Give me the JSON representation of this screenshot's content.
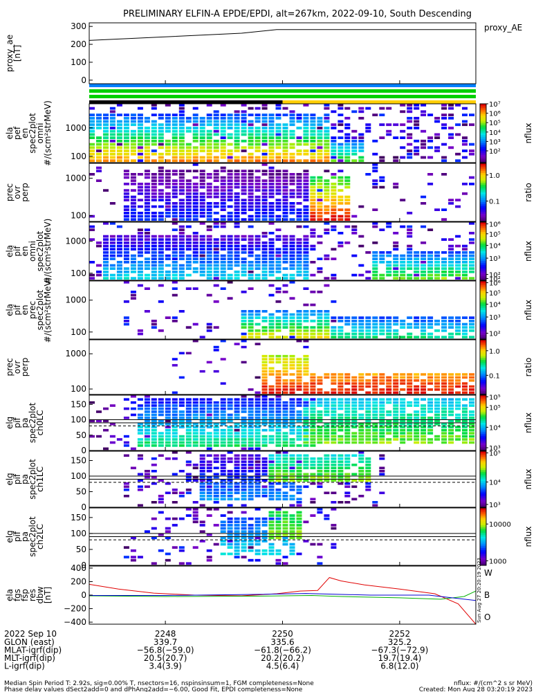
{
  "title": "PRELIMINARY ELFIN-A EPDE/EPDI, alt=267km, 2022-09-10, South Descending",
  "colors": {
    "red": "#e00000",
    "green": "#00b000",
    "blue": "#0000d0",
    "bar_blue": "#0080ff",
    "bar_green": "#00d000",
    "bar_yellow": "#ffd000"
  },
  "chart_data": [
    {
      "type": "line",
      "id": "proxy_ae",
      "legend": "proxy_AE",
      "ylabel": [
        "proxy_ae",
        "[nT]"
      ],
      "ylim": [
        -20,
        320
      ],
      "yticks": [
        {
          "v": 0,
          "label": "0"
        },
        {
          "v": 100,
          "label": "100"
        },
        {
          "v": 200,
          "label": "200"
        },
        {
          "v": 300,
          "label": "300"
        }
      ],
      "x": [
        2246.7,
        2249.3,
        2249.9,
        2253.3
      ],
      "values": [
        222,
        262,
        282,
        282
      ]
    },
    {
      "type": "heatmap",
      "id": "elafen",
      "ylabel": [
        "ela",
        "pef",
        "en",
        "spec2plot",
        "omni",
        "#/(scm²strMeV)"
      ],
      "yscale": "log",
      "ylim": [
        60,
        7000
      ],
      "yticks": [
        {
          "v": 100,
          "label": "100"
        },
        {
          "v": 1000,
          "label": "1000"
        }
      ],
      "colorbar": {
        "label": "nflux",
        "log": true,
        "ticks": [
          {
            "label": "10⁷",
            "f": 1.0
          },
          {
            "label": "10⁶",
            "f": 0.84
          },
          {
            "label": "10⁵",
            "f": 0.68
          },
          {
            "label": "10⁴",
            "f": 0.52
          },
          {
            "label": "10³",
            "f": 0.36
          },
          {
            "label": "10²",
            "f": 0.2
          }
        ]
      },
      "blobs": [
        {
          "x0": 2246.7,
          "x1": 2250.8,
          "lo": 60,
          "hi": 3000,
          "cmin": 0.3,
          "cmax": 0.9
        },
        {
          "x0": 2250.8,
          "x1": 2251.4,
          "lo": 60,
          "hi": 400,
          "cmin": 0.3,
          "cmax": 0.7
        }
      ],
      "noise": {
        "x0": 2246.7,
        "x1": 2253.3,
        "density": 0.35
      }
    },
    {
      "type": "heatmap",
      "id": "prec_ovr_perp_e",
      "ylabel": [
        "prec",
        "ovr",
        "perp"
      ],
      "yscale": "log",
      "ylim": [
        70,
        2500
      ],
      "yticks": [
        {
          "v": 100,
          "label": "100"
        },
        {
          "v": 1000,
          "label": "1000"
        }
      ],
      "colorbar": {
        "label": "ratio",
        "log": true,
        "ticks": [
          {
            "label": "1.0",
            "f": 0.8
          },
          {
            "label": "0.1",
            "f": 0.35
          }
        ]
      },
      "blobs": [
        {
          "x0": 2247.3,
          "x1": 2250.5,
          "lo": 70,
          "hi": 1700,
          "cmin": 0.05,
          "cmax": 0.3
        },
        {
          "x0": 2250.5,
          "x1": 2251.2,
          "lo": 70,
          "hi": 1200,
          "cmin": 0.6,
          "cmax": 1.0
        }
      ],
      "noise": {
        "x0": 2246.7,
        "x1": 2253.3,
        "density": 0.1
      }
    },
    {
      "type": "heatmap",
      "id": "elapifen",
      "ylabel": [
        "ela",
        "pif",
        "en",
        "omni",
        "spec2plot",
        "#/(scm²strMeV)"
      ],
      "yscale": "log",
      "ylim": [
        60,
        4000
      ],
      "yticks": [
        {
          "v": 100,
          "label": "100"
        },
        {
          "v": 1000,
          "label": "1000"
        }
      ],
      "colorbar": {
        "label": "nflux",
        "log": true,
        "ticks": [
          {
            "label": "10⁶",
            "f": 0.97
          },
          {
            "label": "10⁵",
            "f": 0.8
          },
          {
            "label": "10⁴",
            "f": 0.6
          },
          {
            "label": "10³",
            "f": 0.38
          },
          {
            "label": "10²",
            "f": 0.1
          },
          {
            "label": "10²",
            "f": 0.03
          }
        ]
      },
      "blobs": [
        {
          "x0": 2246.9,
          "x1": 2250.5,
          "lo": 60,
          "hi": 1500,
          "cmin": 0.15,
          "cmax": 0.5
        },
        {
          "x0": 2251.5,
          "x1": 2253.3,
          "lo": 60,
          "hi": 500,
          "cmin": 0.3,
          "cmax": 0.7
        }
      ],
      "noise": {
        "x0": 2246.7,
        "x1": 2253.3,
        "density": 0.25
      }
    },
    {
      "type": "heatmap",
      "id": "elapifen_prec",
      "ylabel": [
        "ela",
        "pif",
        "en",
        "prec",
        "spec2plot",
        "#/(scm²strMeV)"
      ],
      "yscale": "log",
      "ylim": [
        60,
        4000
      ],
      "yticks": [
        {
          "v": 100,
          "label": "100"
        },
        {
          "v": 1000,
          "label": "1000"
        }
      ],
      "colorbar": {
        "label": "nflux",
        "log": true,
        "ticks": [
          {
            "label": "10⁶",
            "f": 0.97
          },
          {
            "label": "10⁵",
            "f": 0.8
          },
          {
            "label": "10⁴",
            "f": 0.6
          },
          {
            "label": "10³",
            "f": 0.38
          },
          {
            "label": "10²",
            "f": 0.1
          }
        ]
      },
      "blobs": [
        {
          "x0": 2249.3,
          "x1": 2250.8,
          "lo": 60,
          "hi": 500,
          "cmin": 0.35,
          "cmax": 0.8
        },
        {
          "x0": 2250.8,
          "x1": 2253.3,
          "lo": 60,
          "hi": 300,
          "cmin": 0.3,
          "cmax": 0.6
        }
      ],
      "noise": {
        "x0": 2247.3,
        "x1": 2251.0,
        "density": 0.12
      }
    },
    {
      "type": "heatmap",
      "id": "prec_ovr_perp_i",
      "ylabel": [
        "prec",
        "ovr",
        "perp"
      ],
      "yscale": "log",
      "ylim": [
        70,
        2500
      ],
      "yticks": [
        {
          "v": 100,
          "label": "100"
        },
        {
          "v": 1000,
          "label": "1000"
        }
      ],
      "colorbar": {
        "label": "ratio",
        "log": true,
        "ticks": [
          {
            "label": "1.0",
            "f": 0.8
          },
          {
            "label": "0.1",
            "f": 0.35
          }
        ]
      },
      "blobs": [
        {
          "x0": 2249.7,
          "x1": 2250.5,
          "lo": 70,
          "hi": 900,
          "cmin": 0.7,
          "cmax": 1.0
        },
        {
          "x0": 2250.5,
          "x1": 2253.3,
          "lo": 70,
          "hi": 300,
          "cmin": 0.85,
          "cmax": 1.0
        }
      ],
      "noise": {
        "x0": 2248.0,
        "x1": 2250.5,
        "density": 0.1
      }
    },
    {
      "type": "heatmap",
      "id": "elgpifpa_ch0",
      "ylabel": [
        "elg",
        "pif",
        "pa",
        "spec2plot",
        "ch0LC"
      ],
      "yscale": "linear",
      "ylim": [
        0,
        180
      ],
      "yticks": [
        {
          "v": 0,
          "label": "0"
        },
        {
          "v": 50,
          "label": "50"
        },
        {
          "v": 100,
          "label": "100"
        },
        {
          "v": 150,
          "label": "150"
        }
      ],
      "hlines": [
        {
          "v": 100,
          "dash": false
        },
        {
          "v": 90,
          "dash": false
        },
        {
          "v": 80,
          "dash": true
        }
      ],
      "colorbar": {
        "label": "nflux",
        "log": true,
        "ticks": [
          {
            "label": "10⁵",
            "f": 0.97
          },
          {
            "label": "10⁵",
            "f": 0.78
          },
          {
            "label": "10⁴",
            "f": 0.42
          },
          {
            "label": "10³",
            "f": 0.05
          }
        ]
      },
      "blobs": [
        {
          "x0": 2247.5,
          "x1": 2250.6,
          "lo": 10,
          "hi": 170,
          "cmin": 0.25,
          "cmax": 0.6
        },
        {
          "x0": 2250.3,
          "x1": 2253.3,
          "lo": 20,
          "hi": 170,
          "cmin": 0.45,
          "cmax": 0.7
        }
      ],
      "noise": {
        "x0": 2246.7,
        "x1": 2250.0,
        "density": 0.25
      }
    },
    {
      "type": "heatmap",
      "id": "elgpifpa_ch1",
      "ylabel": [
        "elg",
        "pif",
        "pa",
        "spec2plot",
        "ch1LC"
      ],
      "yscale": "linear",
      "ylim": [
        0,
        180
      ],
      "yticks": [
        {
          "v": 0,
          "label": "0"
        },
        {
          "v": 50,
          "label": "50"
        },
        {
          "v": 100,
          "label": "100"
        },
        {
          "v": 150,
          "label": "150"
        }
      ],
      "hlines": [
        {
          "v": 100,
          "dash": false
        },
        {
          "v": 90,
          "dash": false
        },
        {
          "v": 80,
          "dash": true
        }
      ],
      "colorbar": {
        "label": "nflux",
        "log": true,
        "ticks": [
          {
            "label": "10⁵",
            "f": 0.97
          },
          {
            "label": "10⁴",
            "f": 0.45
          },
          {
            "label": "10³",
            "f": 0.05
          }
        ]
      },
      "blobs": [
        {
          "x0": 2248.6,
          "x1": 2250.4,
          "lo": 20,
          "hi": 170,
          "cmin": 0.15,
          "cmax": 0.4
        },
        {
          "x0": 2249.8,
          "x1": 2251.5,
          "lo": 80,
          "hi": 170,
          "cmin": 0.5,
          "cmax": 0.7
        }
      ],
      "noise": {
        "x0": 2247.3,
        "x1": 2251.8,
        "density": 0.25
      }
    },
    {
      "type": "heatmap",
      "id": "elgpifpa_ch2",
      "ylabel": [
        "elg",
        "pif",
        "pa",
        "spec2plot",
        "ch2LC"
      ],
      "yscale": "linear",
      "ylim": [
        0,
        180
      ],
      "yticks": [
        {
          "v": 0,
          "label": "0"
        },
        {
          "v": 50,
          "label": "50"
        },
        {
          "v": 100,
          "label": "100"
        },
        {
          "v": 150,
          "label": "150"
        }
      ],
      "hlines": [
        {
          "v": 100,
          "dash": false
        },
        {
          "v": 90,
          "dash": false
        },
        {
          "v": 80,
          "dash": true
        }
      ],
      "colorbar": {
        "label": "nflux",
        "log": true,
        "ticks": [
          {
            "label": "10000",
            "f": 0.72
          },
          {
            "label": "1000",
            "f": 0.08
          }
        ]
      },
      "blobs": [
        {
          "x0": 2248.9,
          "x1": 2250.2,
          "lo": 30,
          "hi": 150,
          "cmin": 0.3,
          "cmax": 0.5
        },
        {
          "x0": 2249.8,
          "x1": 2250.3,
          "lo": 80,
          "hi": 170,
          "cmin": 0.6,
          "cmax": 0.7
        }
      ],
      "noise": {
        "x0": 2247.3,
        "x1": 2251.0,
        "density": 0.2
      }
    },
    {
      "type": "line",
      "id": "bbw",
      "ylabel": [
        "ela",
        "fgs",
        "fsp",
        "res",
        "dbw",
        "[nT]"
      ],
      "ylim": [
        -430,
        430
      ],
      "yticks": [
        {
          "v": -400,
          "label": "−400"
        },
        {
          "v": -200,
          "label": "−200"
        },
        {
          "v": 0,
          "label": "0"
        },
        {
          "v": 200,
          "label": "200"
        },
        {
          "v": 400,
          "label": "400"
        }
      ],
      "series": [
        {
          "name": "W",
          "color": "#e00000",
          "x": [
            2246.7,
            2247.2,
            2247.8,
            2248.5,
            2249.3,
            2249.9,
            2250.3,
            2250.6,
            2250.8,
            2251.0,
            2251.4,
            2252.0,
            2252.6,
            2253.0,
            2253.3
          ],
          "values": [
            160,
            90,
            30,
            0,
            -10,
            20,
            60,
            70,
            260,
            210,
            150,
            90,
            20,
            -130,
            -440
          ]
        },
        {
          "name": "B",
          "color": "#00b000",
          "x": [
            2246.7,
            2248.0,
            2249.5,
            2250.5,
            2251.0,
            2252.0,
            2252.7,
            2253.1,
            2253.3
          ],
          "values": [
            -10,
            -20,
            -15,
            -5,
            -20,
            -40,
            -60,
            -20,
            60
          ]
        },
        {
          "name": "O",
          "color": "#0000d0",
          "x": [
            2246.7,
            2248.0,
            2249.5,
            2250.4,
            2251.5,
            2252.5,
            2253.3
          ],
          "values": [
            -5,
            -5,
            10,
            25,
            0,
            0,
            -80
          ]
        }
      ]
    }
  ],
  "xaxis": {
    "date_label": "2022 Sep 10",
    "ticks": [
      {
        "v": 2248,
        "label": "2248"
      },
      {
        "v": 2250,
        "label": "2250"
      },
      {
        "v": 2252,
        "label": "2252"
      }
    ],
    "xlim": [
      2246.7,
      2253.3
    ],
    "rows": [
      {
        "label": "GLON (east)",
        "values": [
          "339.7",
          "335.6",
          "325.2"
        ]
      },
      {
        "label": "MLAT-igrf(dip)",
        "values": [
          "−56.8(−59.0)",
          "−61.8(−66.2)",
          "−67.3(−72.9)"
        ]
      },
      {
        "label": "MLT-igrf(dip)",
        "values": [
          "20.5(20.7)",
          "20.2(20.2)",
          "19.7(19.4)"
        ]
      },
      {
        "label": "L-igrf(dip)",
        "values": [
          "3.4(3.9)",
          "4.5(6.4)",
          "6.8(12.0)"
        ]
      }
    ]
  },
  "footer": {
    "line1": "Median Spin Period T: 2.92s, sig=0.00% T, nsectors=16, nspinsinsum=1, FGM completeness=None",
    "line2": "Phase delay values dSect2add=0 and dPhAng2add=−6.00, Good Fit, EPDI completeness=None",
    "right1": "nflux: #/(cm^2 s sr MeV)",
    "right2": "Created: Mon Aug 28 03:20:19 2023",
    "stamp": "Sun Aug 27 20:20:19 2023"
  }
}
